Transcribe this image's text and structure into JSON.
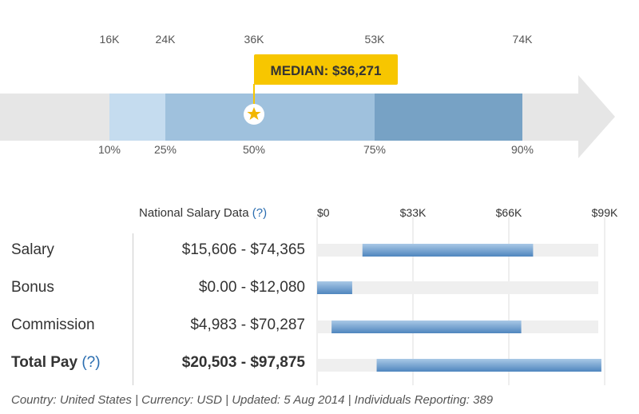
{
  "distribution": {
    "top_ticks": [
      "16K",
      "24K",
      "36K",
      "53K",
      "74K"
    ],
    "bottom_ticks": [
      "10%",
      "25%",
      "50%",
      "75%",
      "90%"
    ],
    "median_label": "MEDIAN: $36,271",
    "colors": {
      "track": "#e6e6e6",
      "p10_25": "#c5dcef",
      "p25_75": "#9fc1dd",
      "p75_90": "#77a2c5",
      "tooltip": "#f7c600",
      "star": "#f2b600"
    }
  },
  "table": {
    "header_label": "National Salary Data",
    "header_help": "(?)",
    "total_help": "(?)",
    "rows": [
      {
        "label": "Salary",
        "range": "$15,606 - $74,365",
        "bold": false
      },
      {
        "label": "Bonus",
        "range": "$0.00 - $12,080",
        "bold": false
      },
      {
        "label": "Commission",
        "range": "$4,983 - $70,287",
        "bold": false
      },
      {
        "label": "Total Pay",
        "range": "$20,503 - $97,875",
        "bold": true
      }
    ]
  },
  "chart_data": [
    {
      "type": "bar",
      "orientation": "horizontal-range",
      "categories": [
        "Salary",
        "Bonus",
        "Commission",
        "Total Pay"
      ],
      "series": [
        {
          "low": [
            15606,
            0,
            4983,
            20503
          ],
          "high": [
            74365,
            12080,
            70287,
            97875
          ]
        }
      ],
      "x_ticks": [
        "$0",
        "$33K",
        "$66K",
        "$99K"
      ],
      "xlim": [
        0,
        99000
      ],
      "grid": true
    },
    {
      "type": "bar",
      "orientation": "percentile-band",
      "percentiles": [
        10,
        25,
        50,
        75,
        90
      ],
      "values": [
        16000,
        24000,
        36271,
        53000,
        74000
      ]
    }
  ],
  "footer": "Country: United States | Currency: USD | Updated: 5 Aug 2014 | Individuals Reporting: 389"
}
